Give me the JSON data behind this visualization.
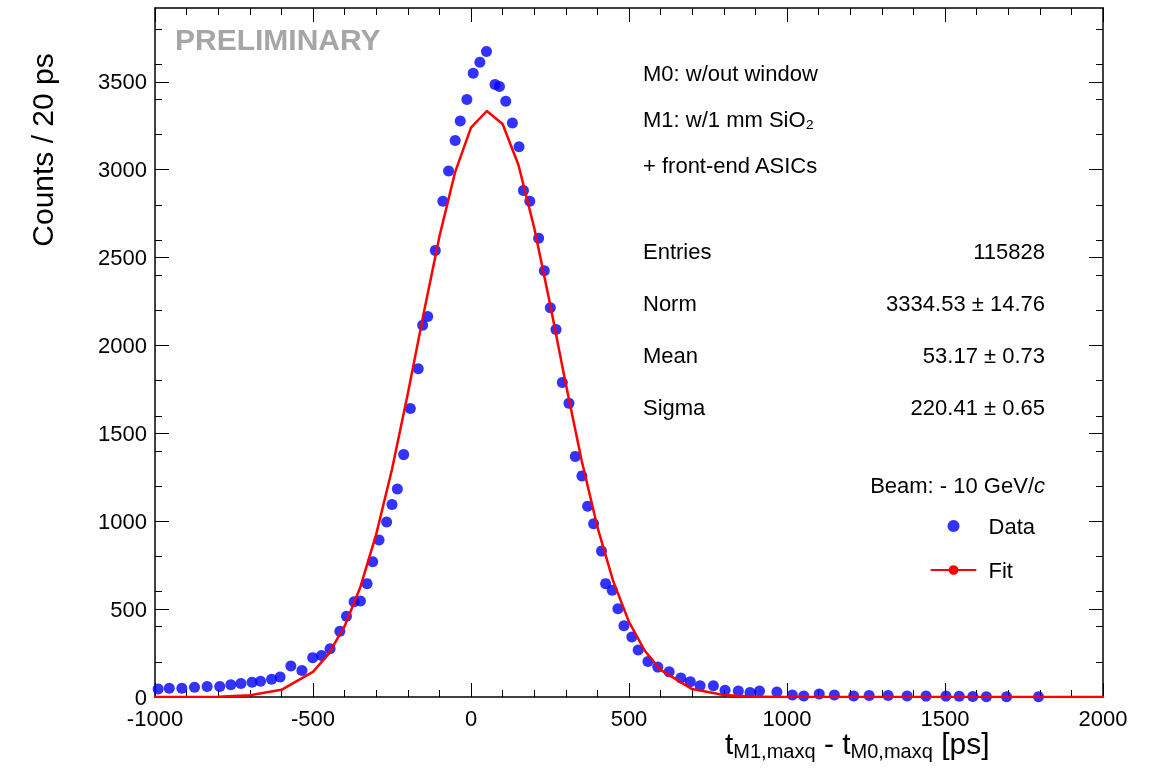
{
  "chart_data": {
    "type": "scatter",
    "xlabel": "t$_{M1,maxq}$ - t$_{M0,maxq}$ [ps]",
    "ylabel": "Counts / 20 ps",
    "legend_title": "Beam: - 10 GeV/c",
    "annotations": [
      "PRELIMINARY",
      "M0: w/out window",
      "M1: w/1 mm SiO₂",
      "+ front-end ASICs",
      "Entries 115828",
      "Norm 3334.53 ± 14.76",
      "Mean 53.17 ± 0.73",
      "Sigma 220.41 ± 0.65"
    ],
    "xlim": [
      -1000,
      2000
    ],
    "xticks": [
      -1000,
      -500,
      0,
      500,
      1000,
      1500,
      2000
    ],
    "ylim": [
      0,
      3920
    ],
    "yticks": [
      0,
      500,
      1000,
      1500,
      2000,
      2500,
      3000,
      3500
    ],
    "grid": false,
    "legend": "right",
    "marker": "circle",
    "series": [
      {
        "name": "Data",
        "color": "#0000ff",
        "x": [
          -990,
          -955,
          -915,
          -875,
          -835,
          -795,
          -760,
          -728,
          -693,
          -666,
          -631,
          -604,
          -570,
          -535,
          -501,
          -473,
          -446,
          -415,
          -394,
          -370,
          -350,
          -329,
          -311,
          -291,
          -267,
          -250,
          -233,
          -213,
          -192,
          -167,
          -153,
          -137,
          -113,
          -89,
          -71,
          -50,
          -34,
          -13,
          7,
          28,
          49,
          76,
          90,
          110,
          131,
          152,
          166,
          186,
          214,
          232,
          251,
          269,
          289,
          310,
          330,
          351,
          369,
          388,
          413,
          426,
          447,
          465,
          484,
          509,
          529,
          560,
          591,
          627,
          664,
          694,
          725,
          767,
          804,
          846,
          883,
          913,
          968,
          1017,
          1053,
          1102,
          1150,
          1211,
          1260,
          1320,
          1380,
          1440,
          1503,
          1545,
          1588,
          1631,
          1695,
          1796
        ],
        "values": [
          45,
          50,
          50,
          55,
          60,
          60,
          70,
          77,
          84,
          89,
          101,
          114,
          176,
          151,
          224,
          236,
          274,
          374,
          460,
          542,
          546,
          645,
          769,
          893,
          996,
          1095,
          1184,
          1379,
          1641,
          1868,
          2115,
          2165,
          2541,
          2820,
          2993,
          3166,
          3277,
          3400,
          3549,
          3611,
          3673,
          3485,
          3473,
          3389,
          3266,
          3130,
          2882,
          2820,
          2610,
          2425,
          2214,
          2091,
          1789,
          1671,
          1369,
          1258,
          1085,
          986,
          830,
          645,
          608,
          502,
          406,
          341,
          267,
          202,
          170,
          143,
          108,
          87,
          64,
          64,
          38,
          34,
          26,
          34,
          28,
          11,
          6,
          17,
          11,
          6,
          8,
          8,
          6,
          5,
          5,
          4,
          3,
          2,
          2,
          2
        ]
      },
      {
        "name": "Fit",
        "type": "line",
        "color": "#ff0000",
        "marker": "none",
        "line_style": "solid",
        "x": [
          -1000,
          -800,
          -700,
          -600,
          -500,
          -450,
          -400,
          -350,
          -300,
          -250,
          -200,
          -150,
          -100,
          -50,
          0,
          50,
          100,
          150,
          200,
          250,
          300,
          350,
          400,
          450,
          500,
          550,
          600,
          700,
          800,
          900,
          1000,
          1500,
          2000
        ],
        "values": [
          0,
          2,
          10,
          41,
          143,
          247,
          403,
          626,
          925,
          1296,
          1725,
          2180,
          2619,
          2988,
          3239,
          3334,
          3260,
          3028,
          2670,
          2238,
          1781,
          1347,
          967,
          659,
          427,
          263,
          154,
          45,
          11,
          2,
          0,
          0,
          0
        ]
      }
    ]
  }
}
